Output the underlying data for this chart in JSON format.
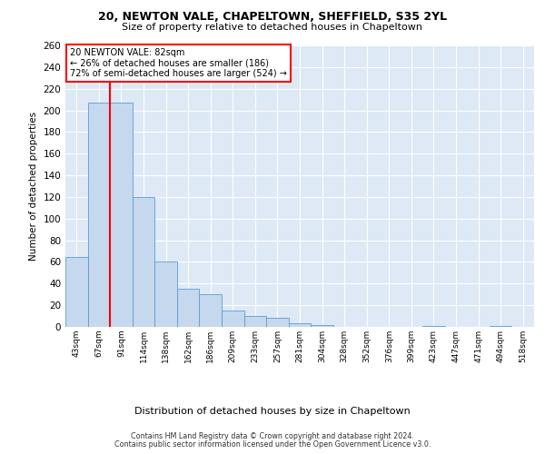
{
  "title_line1": "20, NEWTON VALE, CHAPELTOWN, SHEFFIELD, S35 2YL",
  "title_line2": "Size of property relative to detached houses in Chapeltown",
  "xlabel": "Distribution of detached houses by size in Chapeltown",
  "ylabel": "Number of detached properties",
  "footer_line1": "Contains HM Land Registry data © Crown copyright and database right 2024.",
  "footer_line2": "Contains public sector information licensed under the Open Government Licence v3.0.",
  "bin_labels": [
    "43sqm",
    "67sqm",
    "91sqm",
    "114sqm",
    "138sqm",
    "162sqm",
    "186sqm",
    "209sqm",
    "233sqm",
    "257sqm",
    "281sqm",
    "304sqm",
    "328sqm",
    "352sqm",
    "376sqm",
    "399sqm",
    "423sqm",
    "447sqm",
    "471sqm",
    "494sqm",
    "518sqm"
  ],
  "bar_values": [
    65,
    207,
    207,
    120,
    60,
    35,
    30,
    15,
    10,
    8,
    3,
    2,
    0,
    0,
    0,
    0,
    1,
    0,
    0,
    1,
    0
  ],
  "bar_color": "#c5d8ed",
  "bar_edge_color": "#5b9bd5",
  "annotation_line": "20 NEWTON VALE: 82sqm",
  "annotation_smaller": "← 26% of detached houses are smaller (186)",
  "annotation_larger": "72% of semi-detached houses are larger (524) →",
  "red_line_x": 1.5,
  "ylim": [
    0,
    260
  ],
  "yticks": [
    0,
    20,
    40,
    60,
    80,
    100,
    120,
    140,
    160,
    180,
    200,
    220,
    240,
    260
  ],
  "background_color": "#dde9f5",
  "grid_color": "#ffffff"
}
